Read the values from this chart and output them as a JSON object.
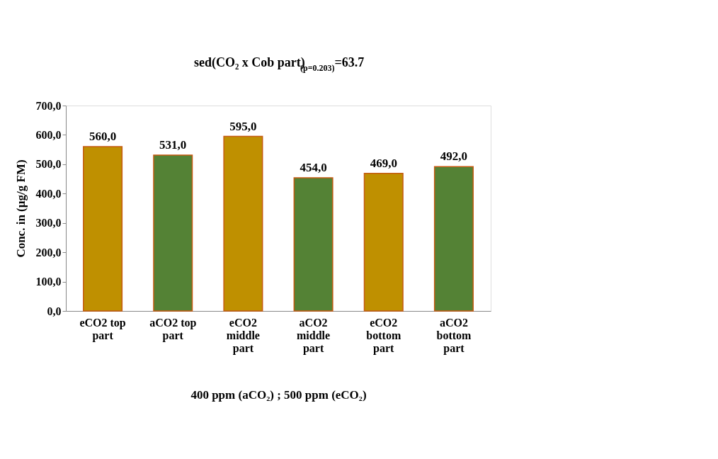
{
  "chart_data": {
    "type": "bar",
    "title": "sed(CO₂ x Cob part)$_{(p=0.203)}$=63.7",
    "xlabel": "400 ppm (aCO₂) ; 500 ppm (eCO₂)",
    "ylabel": "Conc. in (µg/g FM)",
    "categories": [
      "eCO2 top part",
      "aCO2 top part",
      "eCO2 middle part",
      "aCO2 middle part",
      "eCO2 bottom part",
      "aCO2 bottom part"
    ],
    "values": [
      560.0,
      531.0,
      595.0,
      454.0,
      469.0,
      492.0
    ],
    "colors": [
      "#bf9000",
      "#548235",
      "#bf9000",
      "#548235",
      "#bf9000",
      "#548235"
    ],
    "value_labels": [
      "560,0",
      "531,0",
      "595,0",
      "454,0",
      "469,0",
      "492,0"
    ],
    "ylim": [
      0,
      700
    ],
    "yticks": [
      {
        "value": 0,
        "label": "0,0"
      },
      {
        "value": 100,
        "label": "100,0"
      },
      {
        "value": 200,
        "label": "200,0"
      },
      {
        "value": 300,
        "label": "300,0"
      },
      {
        "value": 400,
        "label": "400,0"
      },
      {
        "value": 500,
        "label": "500,0"
      },
      {
        "value": 600,
        "label": "600,0"
      },
      {
        "value": 700,
        "label": "700,0"
      }
    ],
    "grid": false
  }
}
